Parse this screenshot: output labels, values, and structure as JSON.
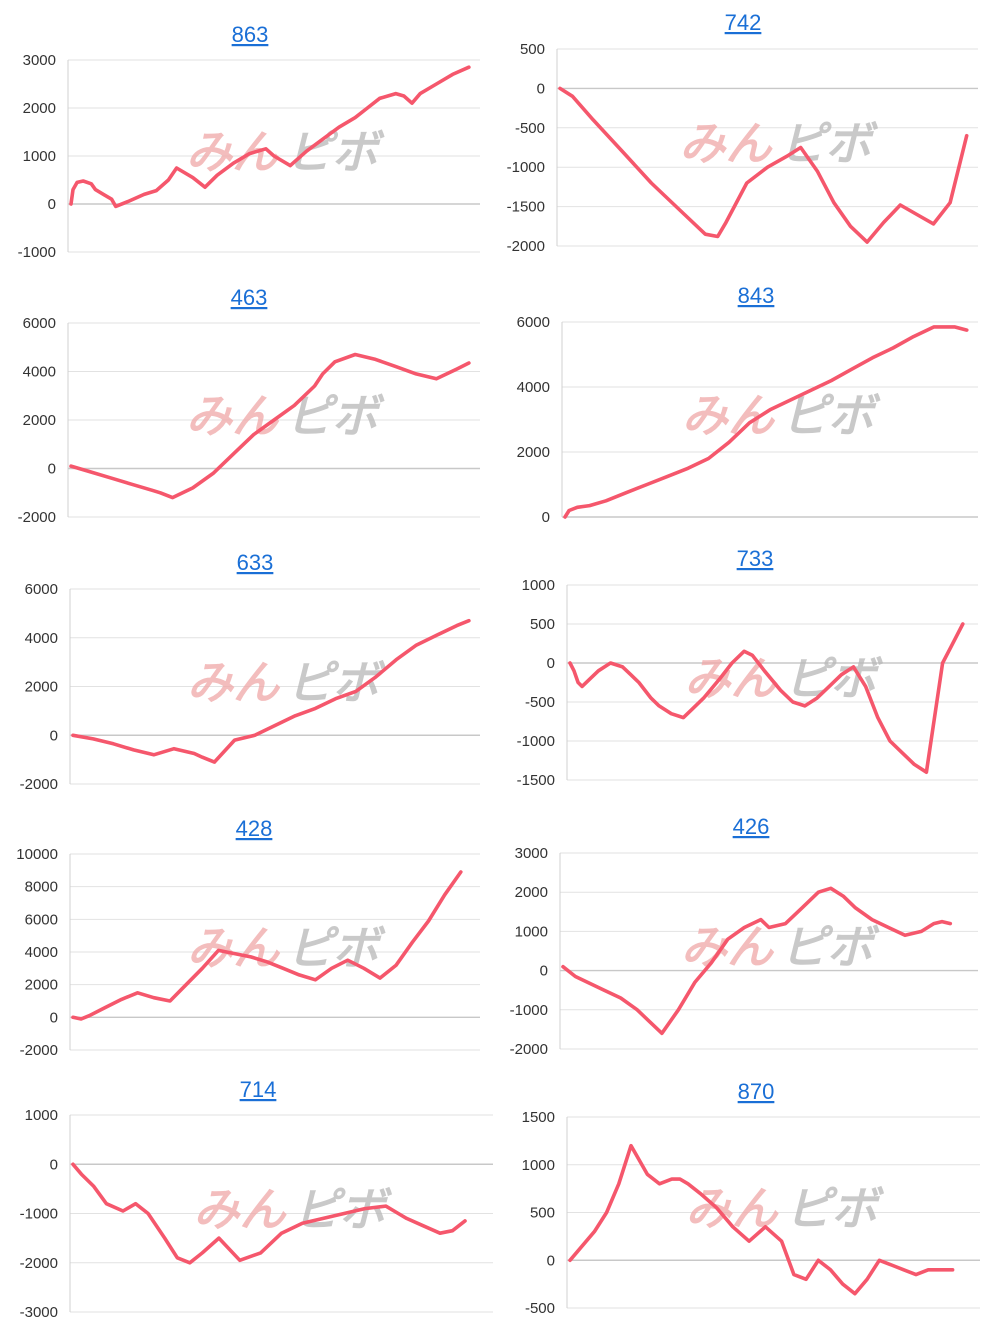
{
  "colors": {
    "line": "#f5576c",
    "title": "#1a6fd6",
    "grid": "#e2e2e2"
  },
  "watermark": {
    "part1": "みん",
    "part2": "ピボ"
  },
  "chart_data": [
    {
      "type": "line",
      "title": "863",
      "ylim": [
        -1000,
        3000
      ],
      "yticks": [
        3000,
        2000,
        1000,
        0,
        -1000
      ],
      "x": [
        0,
        0.5,
        1.5,
        3,
        5,
        6,
        8,
        10,
        11,
        14,
        18,
        21,
        24,
        26,
        30,
        33,
        36,
        40,
        44,
        48,
        50,
        54,
        58,
        62,
        66,
        70,
        73,
        76,
        80,
        82,
        84,
        86,
        90,
        94,
        98
      ],
      "y": [
        0,
        300,
        450,
        480,
        420,
        300,
        200,
        100,
        -50,
        50,
        200,
        280,
        500,
        750,
        550,
        350,
        600,
        850,
        1050,
        1150,
        1000,
        800,
        1100,
        1350,
        1600,
        1800,
        2000,
        2200,
        2300,
        2250,
        2100,
        2300,
        2500,
        2700,
        2850
      ]
    },
    {
      "type": "line",
      "title": "742",
      "ylim": [
        -2000,
        500
      ],
      "yticks": [
        500,
        0,
        -500,
        -1000,
        -1500,
        -2000
      ],
      "x": [
        0,
        3,
        8,
        15,
        22,
        30,
        35,
        38,
        40,
        45,
        50,
        55,
        58,
        62,
        66,
        70,
        74,
        78,
        82,
        86,
        90,
        94,
        98
      ],
      "y": [
        0,
        -100,
        -400,
        -800,
        -1200,
        -1600,
        -1850,
        -1880,
        -1700,
        -1200,
        -1000,
        -850,
        -750,
        -1050,
        -1450,
        -1750,
        -1950,
        -1700,
        -1480,
        -1600,
        -1720,
        -1450,
        -600
      ]
    },
    {
      "type": "line",
      "title": "463",
      "ylim": [
        -2000,
        6000
      ],
      "yticks": [
        6000,
        4000,
        2000,
        0,
        -2000
      ],
      "x": [
        0,
        5,
        10,
        15,
        20,
        22,
        25,
        30,
        35,
        40,
        45,
        50,
        55,
        60,
        62,
        65,
        70,
        75,
        80,
        85,
        90,
        95,
        98
      ],
      "y": [
        100,
        -150,
        -400,
        -650,
        -900,
        -1000,
        -1200,
        -800,
        -200,
        600,
        1400,
        2000,
        2600,
        3400,
        3900,
        4400,
        4700,
        4500,
        4200,
        3900,
        3700,
        4100,
        4350
      ]
    },
    {
      "type": "line",
      "title": "843",
      "ylim": [
        0,
        6000
      ],
      "yticks": [
        6000,
        4000,
        2000,
        0
      ],
      "x": [
        0,
        1,
        3,
        6,
        10,
        15,
        20,
        25,
        30,
        35,
        40,
        45,
        50,
        55,
        60,
        65,
        70,
        75,
        80,
        85,
        90,
        95,
        98
      ],
      "y": [
        0,
        200,
        300,
        350,
        500,
        750,
        1000,
        1250,
        1500,
        1800,
        2300,
        2900,
        3300,
        3600,
        3900,
        4200,
        4550,
        4900,
        5200,
        5550,
        5850,
        5850,
        5750
      ]
    },
    {
      "type": "line",
      "title": "633",
      "ylim": [
        -2000,
        6000
      ],
      "yticks": [
        6000,
        4000,
        2000,
        0,
        -2000
      ],
      "x": [
        0,
        5,
        10,
        15,
        20,
        25,
        30,
        32,
        35,
        40,
        45,
        50,
        55,
        60,
        65,
        70,
        75,
        80,
        85,
        90,
        95,
        98
      ],
      "y": [
        0,
        -150,
        -350,
        -600,
        -800,
        -550,
        -750,
        -900,
        -1100,
        -200,
        0,
        400,
        800,
        1100,
        1500,
        1800,
        2400,
        3100,
        3700,
        4100,
        4500,
        4700
      ]
    },
    {
      "type": "line",
      "title": "733",
      "ylim": [
        -1500,
        1000
      ],
      "yticks": [
        1000,
        500,
        0,
        -500,
        -1000,
        -1500
      ],
      "x": [
        0,
        1,
        2,
        3,
        5,
        7,
        10,
        13,
        15,
        17,
        20,
        22,
        25,
        28,
        30,
        33,
        37,
        40,
        43,
        45,
        48,
        52,
        55,
        58,
        61,
        64,
        67,
        70,
        73,
        76,
        79,
        82,
        85,
        88,
        90,
        92,
        94,
        97
      ],
      "y": [
        0,
        -100,
        -250,
        -300,
        -200,
        -100,
        0,
        -50,
        -150,
        -250,
        -450,
        -550,
        -650,
        -700,
        -600,
        -450,
        -200,
        0,
        150,
        100,
        -100,
        -350,
        -500,
        -550,
        -450,
        -300,
        -150,
        -50,
        -300,
        -700,
        -1000,
        -1150,
        -1300,
        -1400,
        -700,
        0,
        200,
        500
      ]
    },
    {
      "type": "line",
      "title": "428",
      "ylim": [
        -2000,
        10000
      ],
      "yticks": [
        10000,
        8000,
        6000,
        4000,
        2000,
        0,
        -2000
      ],
      "x": [
        0,
        2,
        4,
        8,
        12,
        16,
        20,
        24,
        28,
        32,
        36,
        40,
        44,
        48,
        52,
        56,
        60,
        64,
        68,
        72,
        76,
        80,
        84,
        88,
        92,
        96
      ],
      "y": [
        0,
        -100,
        100,
        600,
        1100,
        1500,
        1200,
        1000,
        2000,
        3000,
        4100,
        3900,
        3700,
        3400,
        3000,
        2600,
        2300,
        3000,
        3500,
        3000,
        2400,
        3200,
        4600,
        5900,
        7500,
        8900
      ]
    },
    {
      "type": "line",
      "title": "426",
      "ylim": [
        -2000,
        3000
      ],
      "yticks": [
        3000,
        2000,
        1000,
        0,
        -1000,
        -2000
      ],
      "x": [
        0,
        3,
        6,
        10,
        14,
        18,
        21,
        24,
        28,
        32,
        36,
        40,
        44,
        48,
        50,
        54,
        58,
        62,
        65,
        68,
        71,
        75,
        79,
        83,
        87,
        90,
        92,
        94
      ],
      "y": [
        100,
        -150,
        -300,
        -500,
        -700,
        -1000,
        -1300,
        -1600,
        -1000,
        -300,
        200,
        800,
        1100,
        1300,
        1100,
        1200,
        1600,
        2000,
        2100,
        1900,
        1600,
        1300,
        1100,
        900,
        1000,
        1200,
        1250,
        1200
      ]
    },
    {
      "type": "line",
      "title": "714",
      "ylim": [
        -3000,
        1000
      ],
      "yticks": [
        1000,
        0,
        -1000,
        -2000,
        -3000
      ],
      "x": [
        0,
        2,
        5,
        8,
        12,
        15,
        18,
        22,
        25,
        28,
        31,
        35,
        40,
        45,
        50,
        55,
        60,
        65,
        70,
        75,
        78,
        80,
        84,
        88,
        91,
        94
      ],
      "y": [
        0,
        -200,
        -450,
        -800,
        -950,
        -800,
        -1000,
        -1500,
        -1900,
        -2000,
        -1800,
        -1500,
        -1950,
        -1800,
        -1400,
        -1200,
        -1100,
        -1000,
        -900,
        -850,
        -1000,
        -1100,
        -1250,
        -1400,
        -1350,
        -1150
      ]
    },
    {
      "type": "line",
      "title": "870",
      "ylim": [
        -500,
        1500
      ],
      "yticks": [
        1500,
        1000,
        500,
        0,
        -500
      ],
      "x": [
        0,
        3,
        6,
        9,
        12,
        15,
        17,
        19,
        22,
        25,
        27,
        29,
        32,
        36,
        40,
        44,
        48,
        52,
        55,
        58,
        61,
        64,
        67,
        70,
        73,
        76,
        79,
        82,
        85,
        88,
        91,
        94
      ],
      "y": [
        0,
        150,
        300,
        500,
        800,
        1200,
        1050,
        900,
        800,
        850,
        850,
        800,
        700,
        550,
        350,
        200,
        350,
        200,
        -150,
        -200,
        0,
        -100,
        -250,
        -350,
        -200,
        0,
        -50,
        -100,
        -150,
        -100,
        -100,
        -100
      ]
    }
  ]
}
